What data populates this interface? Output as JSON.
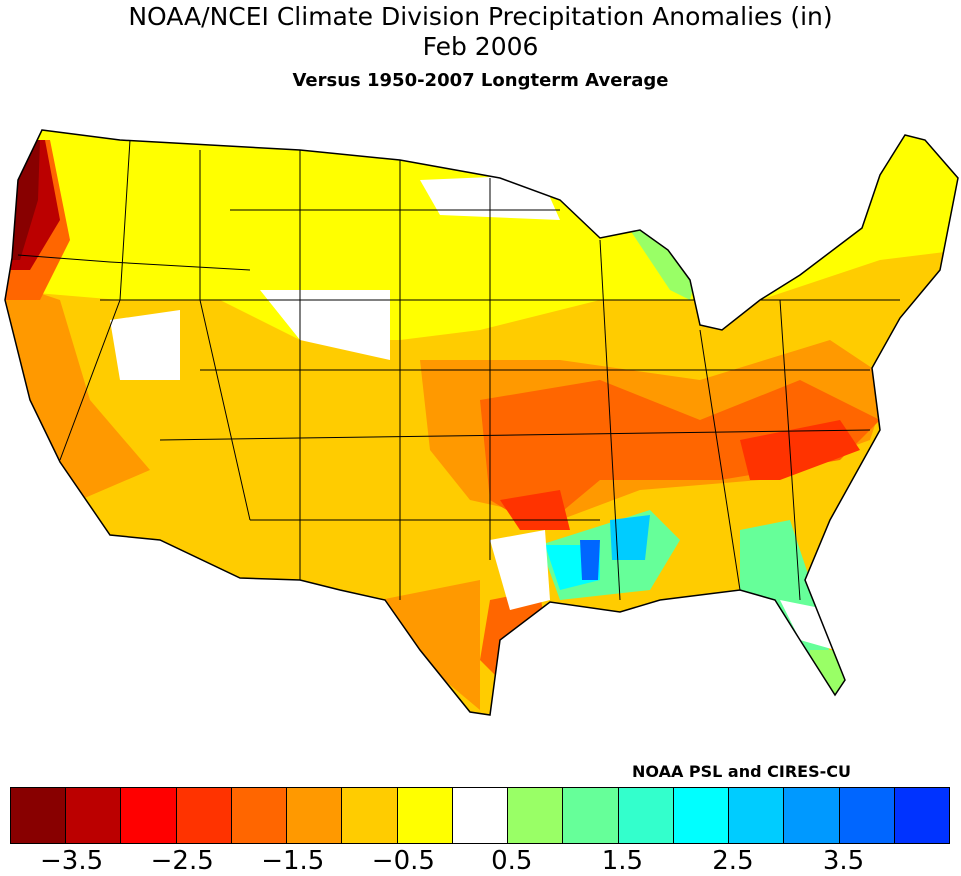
{
  "title": "NOAA/NCEI Climate Division Precipitation Anomalies (in)",
  "subtitle": "Feb 2006",
  "subtitle2": "Versus 1950-2007 Longterm Average",
  "credit": "NOAA PSL and CIRES-CU",
  "legend": {
    "colors": [
      "#880000",
      "#bb0000",
      "#ff0000",
      "#ff3300",
      "#ff6600",
      "#ff9900",
      "#ffcc00",
      "#ffff00",
      "#ffffff",
      "#99ff66",
      "#66ff99",
      "#33ffcc",
      "#00ffff",
      "#00ccff",
      "#0099ff",
      "#0066ff",
      "#0033ff"
    ],
    "tick_labels": [
      "−3.5",
      "−2.5",
      "−1.5",
      "−0.5",
      "0.5",
      "1.5",
      "2.5",
      "3.5"
    ]
  },
  "map": {
    "region": "Contiguous United States climate divisions",
    "pattern": "Mostly dry (yellow/orange) nationwide; driest in Pacific Northwest coast, Tennessee/Ohio Valley, Mid-Atlantic and Carolinas; wet (green/cyan/blue) in Lower Mississippi Valley, Georgia and Florida"
  }
}
